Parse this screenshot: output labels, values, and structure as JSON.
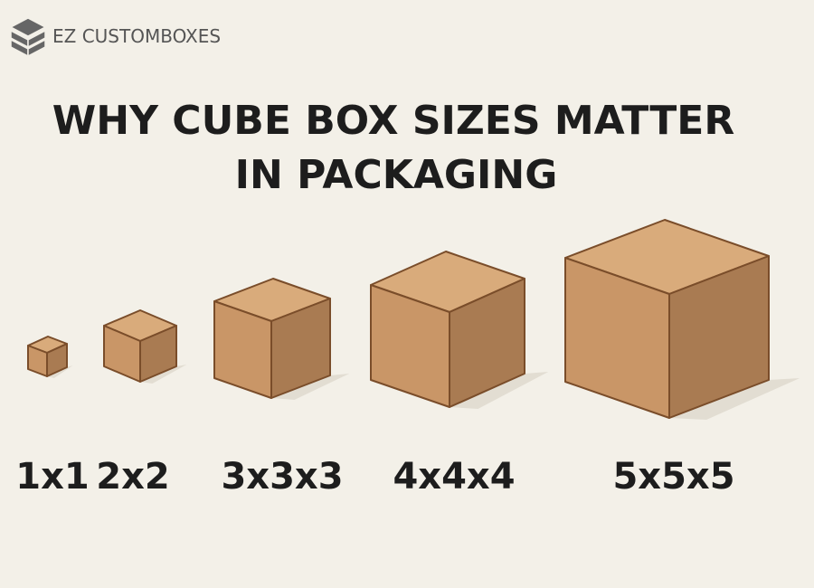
{
  "brand": "EZ CUSTOMBOXES",
  "title": [
    "WHY CUBE BOX SIZES MATTER",
    "IN PACKAGING"
  ],
  "boxes": [
    {
      "label": "1x1"
    },
    {
      "label": "2x2"
    },
    {
      "label": "3x3x3"
    },
    {
      "label": "4x4x4"
    },
    {
      "label": "5x5x5"
    }
  ]
}
